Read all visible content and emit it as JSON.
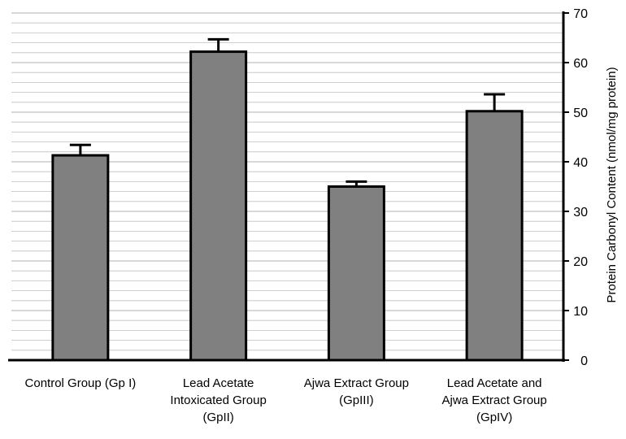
{
  "chart_data": {
    "type": "bar",
    "categories": [
      [
        "Control Group (Gp I)"
      ],
      [
        "Lead Acetate",
        "Intoxicated Group",
        "(GpII)"
      ],
      [
        "Ajwa Extract Group",
        "(GpIII)"
      ],
      [
        "Lead Acetate and",
        "Ajwa Extract Group",
        "(GpIV)"
      ]
    ],
    "values": [
      41.3,
      62.2,
      35.0,
      50.2
    ],
    "errors": [
      2.1,
      2.5,
      1.0,
      3.4
    ],
    "ylabel": "Protein Carbonyl Content (nmol/mg protein)",
    "ylim": [
      0,
      70
    ],
    "yticks": [
      0,
      10,
      20,
      30,
      40,
      50,
      60,
      70
    ],
    "y_axis_side": "right",
    "grid": true,
    "minor_grid_step": 2,
    "bar_color": "#808080",
    "grid_color": "#c0c0c0"
  }
}
